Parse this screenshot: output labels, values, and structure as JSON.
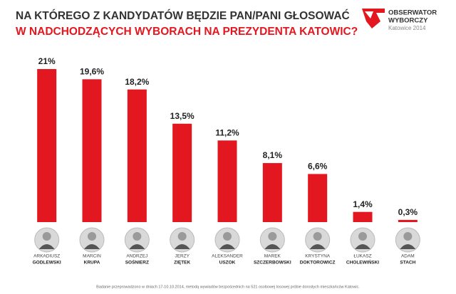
{
  "title": [
    "NA KTÓREGO Z KANDYDATÓW BĘDZIE PAN/PANI GŁOSOWAĆ",
    "W NADCHODZĄCYCH WYBORACH NA PREZYDENTA KATOWIC?"
  ],
  "logo": {
    "name": [
      "OBSERWATOR",
      "WYBORCZY"
    ],
    "subtitle": "Katowice 2014"
  },
  "chart_data": {
    "type": "bar",
    "categories": [
      [
        "ARKADIUSZ",
        "GODLEWSKI"
      ],
      [
        "MARCIN",
        "KRUPA"
      ],
      [
        "ANDRZEJ",
        "SOŚNIERZ"
      ],
      [
        "JERZY",
        "ZIĘTEK"
      ],
      [
        "ALEKSANDER",
        "USZOK"
      ],
      [
        "MAREK",
        "SZCZERBOWSKI"
      ],
      [
        "KRYSTYNA",
        "DOKTOROWICZ"
      ],
      [
        "ŁUKASZ",
        "CHOLEWIŃSKI"
      ],
      [
        "ADAM",
        "STACH"
      ]
    ],
    "values": [
      21,
      19.6,
      18.2,
      13.5,
      11.2,
      8.1,
      6.6,
      1.4,
      0.3
    ],
    "value_labels": [
      "21%",
      "19,6%",
      "18,2%",
      "13,5%",
      "11,2%",
      "8,1%",
      "6,6%",
      "1,4%",
      "0,3%"
    ],
    "color": "#e3171f"
  },
  "footnote": "Badanie przeprowadzono w dniach 17-10.10.2014, metodą wywiadów bezpośrednich na 521 osobowej losowej próbie dorosłych mieszkańców Katowic."
}
